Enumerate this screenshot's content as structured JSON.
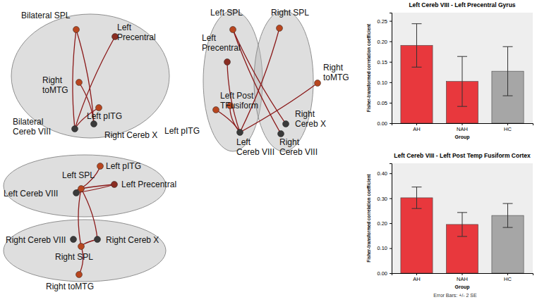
{
  "chart_data": [
    {
      "type": "bar",
      "title": "Left Cereb VIII - Left Precentral Gyrus",
      "x_label": "Group",
      "y_label": "Fisher-transformed correlation coefficient",
      "categories": [
        "AH",
        "NAH",
        "HC"
      ],
      "values": [
        0.19,
        0.102,
        0.127
      ],
      "errors": [
        0.053,
        0.061,
        0.06
      ],
      "colors": [
        "#e8383d",
        "#e8383d",
        "#a6a6a6"
      ],
      "ylim": [
        0,
        0.27
      ],
      "yticks": [
        {
          "value": 0,
          "label": "0.00"
        },
        {
          "value": 0.05,
          "label": "0.05"
        },
        {
          "value": 0.1,
          "label": "0.10"
        },
        {
          "value": 0.15,
          "label": "0.15"
        },
        {
          "value": 0.2,
          "label": "0.20"
        },
        {
          "value": 0.25,
          "label": "0.25"
        }
      ],
      "grid": false
    },
    {
      "type": "bar",
      "title": "Left Cereb VIII - Left Post Temp Fusiform Cortex",
      "x_label": "Group",
      "y_label": "Fisher-transformed correlation coefficient",
      "categories": [
        "AH",
        "NAH",
        "HC"
      ],
      "values": [
        0.302,
        0.195,
        0.231
      ],
      "errors": [
        0.043,
        0.048,
        0.048
      ],
      "colors": [
        "#e8383d",
        "#e8383d",
        "#a6a6a6"
      ],
      "ylim": [
        0,
        0.44
      ],
      "yticks": [
        {
          "value": 0,
          "label": "0.00"
        },
        {
          "value": 0.1,
          "label": "0.10"
        },
        {
          "value": 0.2,
          "label": "0.20"
        },
        {
          "value": 0.3,
          "label": "0.30"
        },
        {
          "value": 0.4,
          "label": "0.40"
        }
      ],
      "grid": false,
      "annotations": [
        "Error Bars: +/- 2 SE"
      ]
    }
  ],
  "diagram": {
    "views": [
      {
        "nodes": [
          {
            "label": [
              "Bilateral SPL"
            ],
            "color": "#b8461f"
          },
          {
            "label": [
              "Left",
              "Precentral"
            ],
            "color": "#8a2d22"
          },
          {
            "label": [
              "Right",
              "toMTG"
            ],
            "color": "#b8461f"
          },
          {
            "label": [
              "Left pITG"
            ],
            "color": "#b8461f"
          },
          {
            "label": [
              "Bilateral",
              "Cereb VIII"
            ],
            "color": "#3a3a3a"
          },
          {
            "label": [
              "Right Cereb X"
            ],
            "color": "#3a3a3a"
          }
        ],
        "edges": [
          [
            0,
            4
          ],
          [
            0,
            5
          ],
          [
            1,
            4
          ],
          [
            2,
            5
          ],
          [
            3,
            4
          ]
        ]
      },
      {
        "nodes": [
          {
            "label": [
              "Left SPL"
            ],
            "color": "#b8461f"
          },
          {
            "label": [
              "Right SPL"
            ],
            "color": "#b8461f"
          },
          {
            "label": [
              "Left",
              "Precentral"
            ],
            "color": "#8a2d22"
          },
          {
            "label": [
              "Right",
              "toMTG"
            ],
            "color": "#b8461f"
          },
          {
            "label": [
              "Left Post",
              "TFusiform"
            ],
            "color": "#b8461f"
          },
          {
            "label": [
              "Left pITG"
            ],
            "color": "#b8461f"
          },
          {
            "label": [
              "Left",
              "Cereb VIII"
            ],
            "color": "#3a3a3a"
          },
          {
            "label": [
              "Right",
              "Cereb X"
            ],
            "color": "#3a3a3a"
          },
          {
            "label": [
              "Right",
              "Cereb VIII"
            ],
            "color": "#3a3a3a"
          }
        ],
        "edges": [
          [
            0,
            7
          ],
          [
            1,
            6
          ],
          [
            2,
            6
          ],
          [
            3,
            6
          ],
          [
            4,
            6
          ],
          [
            5,
            6
          ],
          [
            0,
            8
          ]
        ]
      },
      {
        "nodes": [
          {
            "label": [
              "Left SPL"
            ],
            "color": "#b8461f"
          },
          {
            "label": [
              "Left pITG"
            ],
            "color": "#b8461f"
          },
          {
            "label": [
              "Left Cereb VIII"
            ],
            "color": "#3a3a3a"
          },
          {
            "label": [
              "Left Precentral"
            ],
            "color": "#8a2d22"
          },
          {
            "label": [
              "Right Cereb VIII"
            ],
            "color": "#3a3a3a"
          },
          {
            "label": [
              "Right Cereb X"
            ],
            "color": "#3a3a3a"
          },
          {
            "label": [
              "Right SPL"
            ],
            "color": "#b8461f"
          },
          {
            "label": [
              "Right toMTG"
            ],
            "color": "#b8461f"
          }
        ],
        "edges": [
          [
            0,
            3
          ],
          [
            0,
            1
          ],
          [
            2,
            0
          ],
          [
            0,
            5
          ],
          [
            6,
            5
          ],
          [
            6,
            7
          ],
          [
            6,
            0
          ],
          [
            2,
            3
          ]
        ]
      }
    ]
  }
}
